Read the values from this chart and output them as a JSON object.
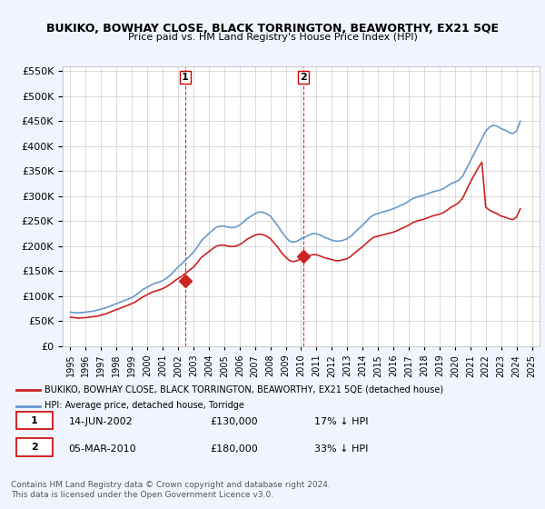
{
  "title": "BUKIKO, BOWHAY CLOSE, BLACK TORRINGTON, BEAWORTHY, EX21 5QE",
  "subtitle": "Price paid vs. HM Land Registry's House Price Index (HPI)",
  "legend_line1": "BUKIKO, BOWHAY CLOSE, BLACK TORRINGTON, BEAWORTHY, EX21 5QE (detached house)",
  "legend_line2": "HPI: Average price, detached house, Torridge",
  "footer": "Contains HM Land Registry data © Crown copyright and database right 2024.\nThis data is licensed under the Open Government Licence v3.0.",
  "table": [
    {
      "num": 1,
      "date": "14-JUN-2002",
      "price": "£130,000",
      "hpi": "17% ↓ HPI"
    },
    {
      "num": 2,
      "date": "05-MAR-2010",
      "price": "£180,000",
      "hpi": "33% ↓ HPI"
    }
  ],
  "marker1_x": 2002.45,
  "marker1_y": 130000,
  "marker2_x": 2010.17,
  "marker2_y": 180000,
  "vline1_x": 2002.45,
  "vline2_x": 2010.17,
  "hpi_color": "#6699cc",
  "price_color": "#cc2222",
  "vline_color": "#cc0000",
  "background_color": "#f0f4ff",
  "plot_bg": "#ffffff",
  "ylim": [
    0,
    560000
  ],
  "yticks": [
    0,
    50000,
    100000,
    150000,
    200000,
    250000,
    300000,
    350000,
    400000,
    450000,
    500000,
    550000
  ],
  "xlim": [
    1994.5,
    2025.5
  ],
  "hpi_data": {
    "years": [
      1995,
      1995.25,
      1995.5,
      1995.75,
      1996,
      1996.25,
      1996.5,
      1996.75,
      1997,
      1997.25,
      1997.5,
      1997.75,
      1998,
      1998.25,
      1998.5,
      1998.75,
      1999,
      1999.25,
      1999.5,
      1999.75,
      2000,
      2000.25,
      2000.5,
      2000.75,
      2001,
      2001.25,
      2001.5,
      2001.75,
      2002,
      2002.25,
      2002.5,
      2002.75,
      2003,
      2003.25,
      2003.5,
      2003.75,
      2004,
      2004.25,
      2004.5,
      2004.75,
      2005,
      2005.25,
      2005.5,
      2005.75,
      2006,
      2006.25,
      2006.5,
      2006.75,
      2007,
      2007.25,
      2007.5,
      2007.75,
      2008,
      2008.25,
      2008.5,
      2008.75,
      2009,
      2009.25,
      2009.5,
      2009.75,
      2010,
      2010.25,
      2010.5,
      2010.75,
      2011,
      2011.25,
      2011.5,
      2011.75,
      2012,
      2012.25,
      2012.5,
      2012.75,
      2013,
      2013.25,
      2013.5,
      2013.75,
      2014,
      2014.25,
      2014.5,
      2014.75,
      2015,
      2015.25,
      2015.5,
      2015.75,
      2016,
      2016.25,
      2016.5,
      2016.75,
      2017,
      2017.25,
      2017.5,
      2017.75,
      2018,
      2018.25,
      2018.5,
      2018.75,
      2019,
      2019.25,
      2019.5,
      2019.75,
      2020,
      2020.25,
      2020.5,
      2020.75,
      2021,
      2021.25,
      2021.5,
      2021.75,
      2022,
      2022.25,
      2022.5,
      2022.75,
      2023,
      2023.25,
      2023.5,
      2023.75,
      2024,
      2024.25
    ],
    "values": [
      68000,
      67000,
      66500,
      67000,
      68000,
      69000,
      70000,
      72000,
      74000,
      76000,
      79000,
      82000,
      85000,
      88000,
      91000,
      94000,
      97000,
      102000,
      108000,
      114000,
      118000,
      122000,
      126000,
      128000,
      131000,
      136000,
      142000,
      150000,
      158000,
      165000,
      173000,
      180000,
      188000,
      198000,
      210000,
      218000,
      225000,
      232000,
      238000,
      240000,
      240000,
      238000,
      237000,
      238000,
      242000,
      248000,
      255000,
      260000,
      265000,
      268000,
      268000,
      265000,
      260000,
      250000,
      240000,
      228000,
      218000,
      210000,
      208000,
      210000,
      215000,
      218000,
      222000,
      225000,
      225000,
      222000,
      218000,
      215000,
      212000,
      210000,
      210000,
      212000,
      215000,
      220000,
      228000,
      235000,
      242000,
      250000,
      258000,
      263000,
      265000,
      268000,
      270000,
      272000,
      275000,
      278000,
      282000,
      285000,
      290000,
      295000,
      298000,
      300000,
      302000,
      305000,
      308000,
      310000,
      312000,
      315000,
      320000,
      325000,
      328000,
      332000,
      340000,
      355000,
      370000,
      385000,
      400000,
      415000,
      430000,
      438000,
      442000,
      440000,
      435000,
      432000,
      428000,
      425000,
      430000,
      450000
    ]
  },
  "price_data": {
    "years": [
      1995,
      1995.25,
      1995.5,
      1995.75,
      1996,
      1996.25,
      1996.5,
      1996.75,
      1997,
      1997.25,
      1997.5,
      1997.75,
      1998,
      1998.25,
      1998.5,
      1998.75,
      1999,
      1999.25,
      1999.5,
      1999.75,
      2000,
      2000.25,
      2000.5,
      2000.75,
      2001,
      2001.25,
      2001.5,
      2001.75,
      2002,
      2002.25,
      2002.5,
      2002.75,
      2003,
      2003.25,
      2003.5,
      2003.75,
      2004,
      2004.25,
      2004.5,
      2004.75,
      2005,
      2005.25,
      2005.5,
      2005.75,
      2006,
      2006.25,
      2006.5,
      2006.75,
      2007,
      2007.25,
      2007.5,
      2007.75,
      2008,
      2008.25,
      2008.5,
      2008.75,
      2009,
      2009.25,
      2009.5,
      2009.75,
      2010,
      2010.25,
      2010.5,
      2010.75,
      2011,
      2011.25,
      2011.5,
      2011.75,
      2012,
      2012.25,
      2012.5,
      2012.75,
      2013,
      2013.25,
      2013.5,
      2013.75,
      2014,
      2014.25,
      2014.5,
      2014.75,
      2015,
      2015.25,
      2015.5,
      2015.75,
      2016,
      2016.25,
      2016.5,
      2016.75,
      2017,
      2017.25,
      2017.5,
      2017.75,
      2018,
      2018.25,
      2018.5,
      2018.75,
      2019,
      2019.25,
      2019.5,
      2019.75,
      2020,
      2020.25,
      2020.5,
      2020.75,
      2021,
      2021.25,
      2021.5,
      2021.75,
      2022,
      2022.25,
      2022.5,
      2022.75,
      2023,
      2023.25,
      2023.5,
      2023.75,
      2024,
      2024.25
    ],
    "values": [
      58000,
      57000,
      56000,
      56500,
      57000,
      58000,
      59000,
      60000,
      62000,
      64000,
      67000,
      70000,
      73000,
      76000,
      79000,
      82000,
      85000,
      89000,
      94000,
      99000,
      103000,
      107000,
      110000,
      112000,
      115000,
      119000,
      124000,
      130000,
      135000,
      140000,
      146000,
      152000,
      158000,
      167000,
      177000,
      183000,
      189000,
      195000,
      200000,
      202000,
      202000,
      200000,
      199000,
      200000,
      203000,
      208000,
      214000,
      218000,
      222000,
      224000,
      223000,
      220000,
      215000,
      206000,
      197000,
      186000,
      178000,
      171000,
      169000,
      171000,
      175000,
      178000,
      181000,
      183000,
      183000,
      180000,
      177000,
      175000,
      173000,
      171000,
      171000,
      173000,
      175000,
      180000,
      187000,
      193000,
      199000,
      206000,
      213000,
      218000,
      220000,
      222000,
      224000,
      226000,
      228000,
      231000,
      235000,
      238000,
      242000,
      247000,
      250000,
      252000,
      254000,
      257000,
      260000,
      262000,
      264000,
      267000,
      272000,
      278000,
      282000,
      287000,
      296000,
      312000,
      328000,
      342000,
      356000,
      368000,
      278000,
      272000,
      268000,
      265000,
      260000,
      258000,
      255000,
      253000,
      258000,
      275000
    ]
  }
}
